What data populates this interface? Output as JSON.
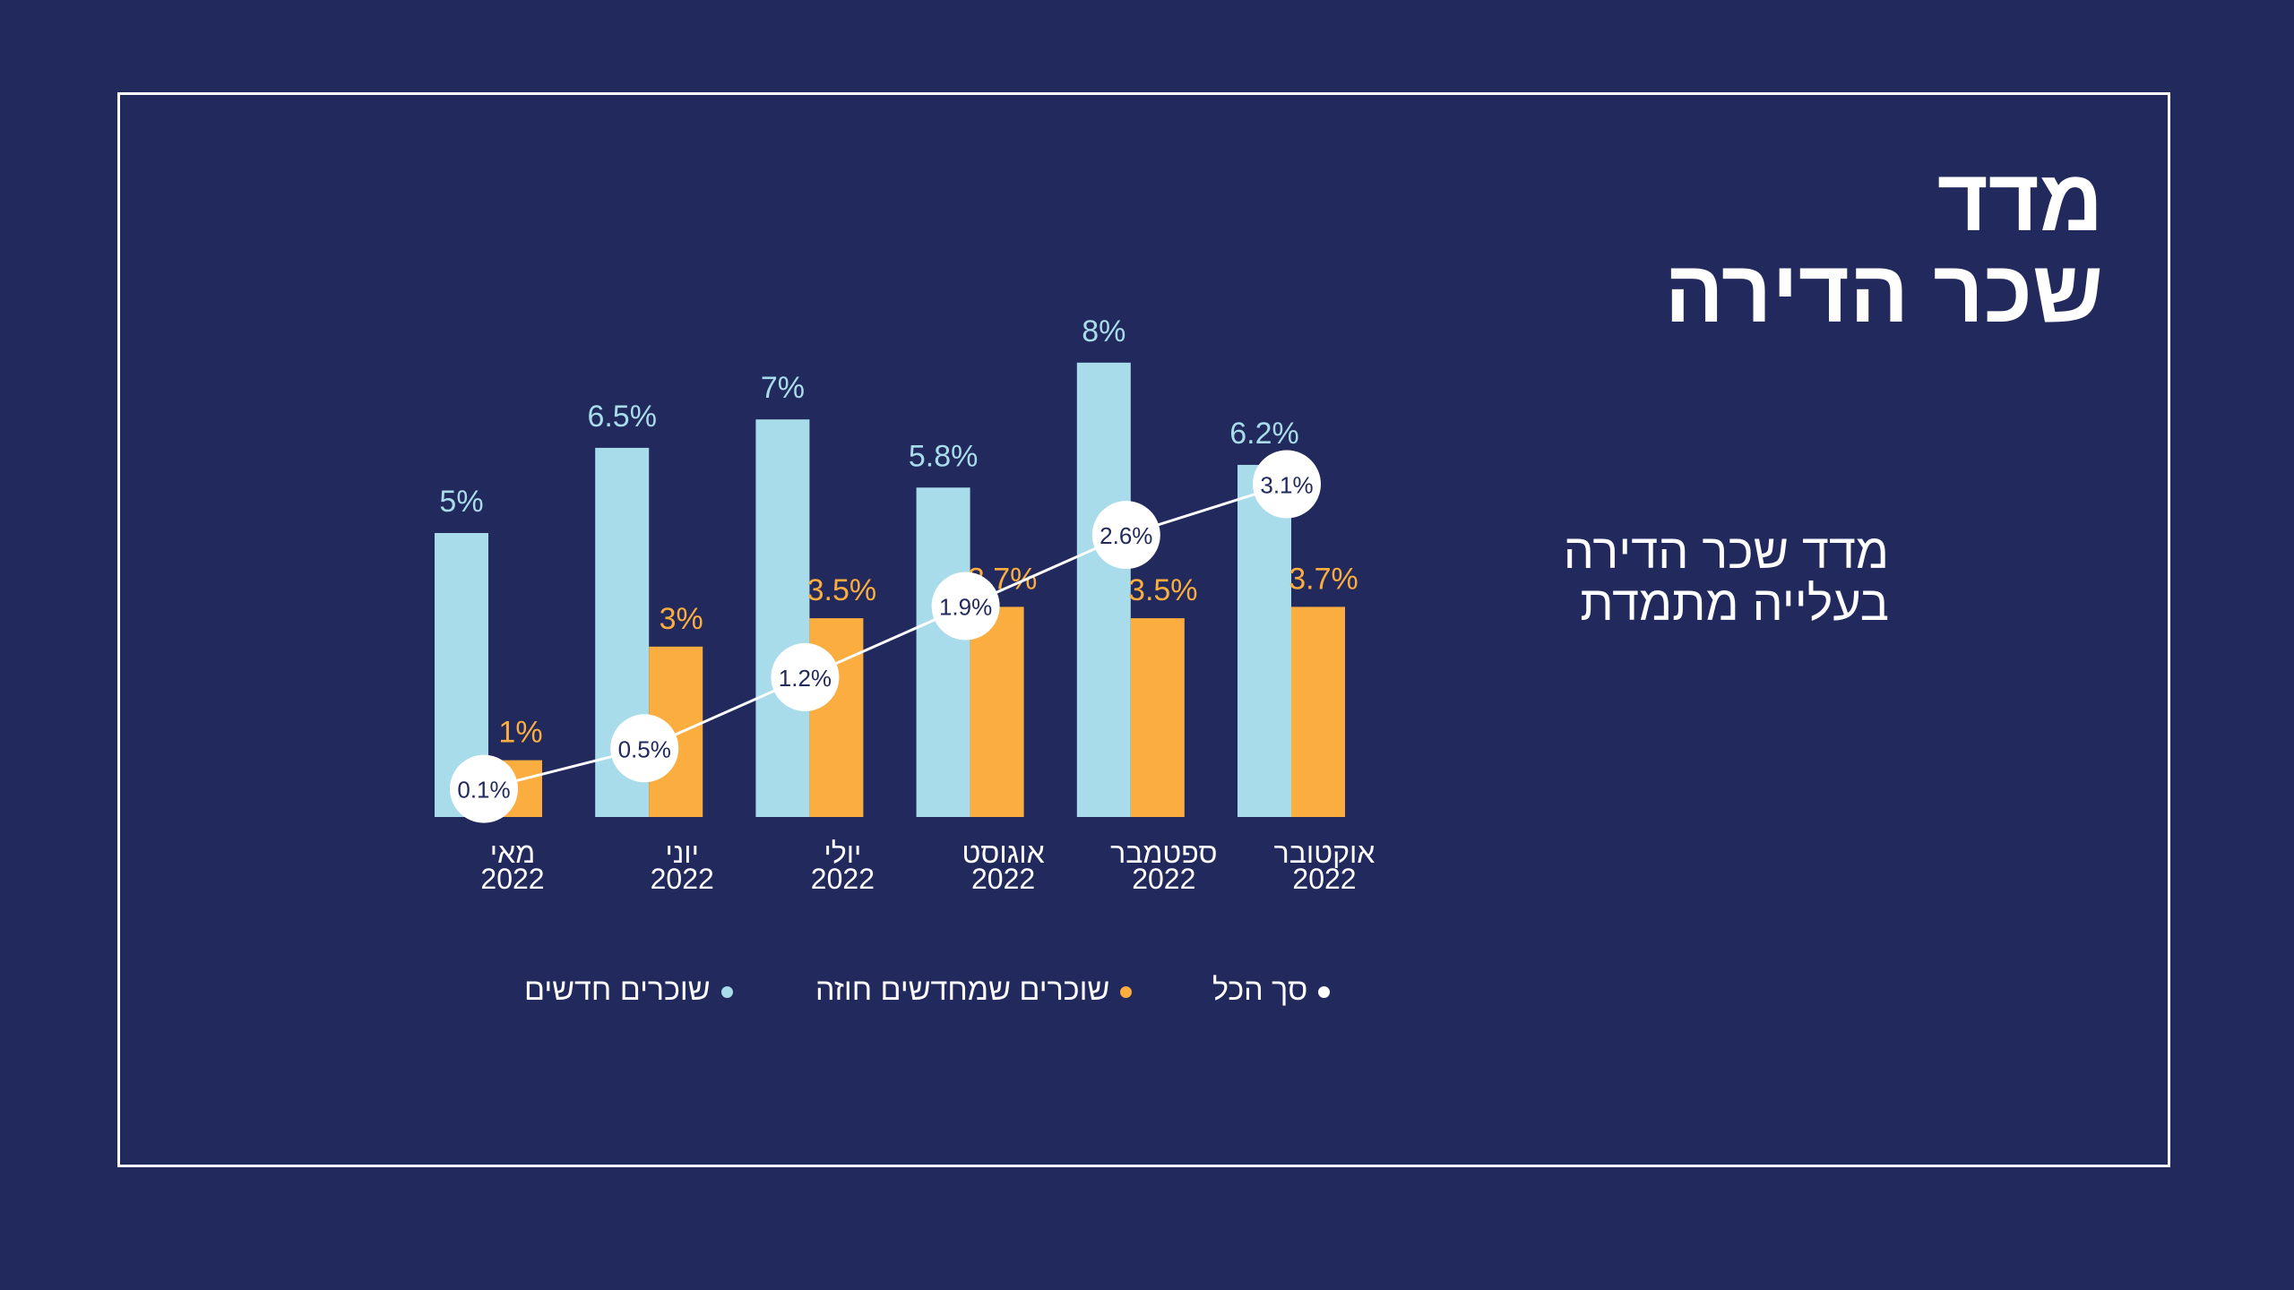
{
  "slide": {
    "title_line1": "מדד",
    "title_line2": "שכר הדירה",
    "subtitle_line1": "מדד שכר הדירה",
    "subtitle_line2": "בעלייה מתמדת"
  },
  "colors": {
    "background": "#22295c",
    "new_renters": "#a8dcea",
    "renewing_renters": "#fbae3f",
    "total": "#ffffff"
  },
  "chart_data": {
    "type": "bar",
    "categories": [
      {
        "month": "מאי",
        "year": "2022"
      },
      {
        "month": "יוני",
        "year": "2022"
      },
      {
        "month": "יולי",
        "year": "2022"
      },
      {
        "month": "אוגוסט",
        "year": "2022"
      },
      {
        "month": "ספטמבר",
        "year": "2022"
      },
      {
        "month": "אוקטובר",
        "year": "2022"
      }
    ],
    "series": [
      {
        "name": "שוכרים חדשים",
        "type": "bar",
        "color": "#a8dcea",
        "values": [
          5,
          6.5,
          7,
          5.8,
          8,
          6.2
        ],
        "labels": [
          "5%",
          "6.5%",
          "7%",
          "5.8%",
          "8%",
          "6.2%"
        ]
      },
      {
        "name": "שוכרים שמחדשים חוזה",
        "type": "bar",
        "color": "#fbae3f",
        "values": [
          1,
          3,
          3.5,
          3.7,
          3.5,
          3.7
        ],
        "labels": [
          "1%",
          "3%",
          "3.5%",
          "3.7%",
          "3.5%",
          "3.7%"
        ]
      },
      {
        "name": "סך הכל",
        "type": "line",
        "color": "#ffffff",
        "values": [
          0.1,
          0.5,
          1.2,
          1.9,
          2.6,
          3.1
        ],
        "labels": [
          "0.1%",
          "0.5%",
          "1.2%",
          "1.9%",
          "2.6%",
          "3.1%"
        ]
      }
    ],
    "ylim": [
      0,
      8
    ],
    "grid": false,
    "legend_position": "bottom"
  }
}
